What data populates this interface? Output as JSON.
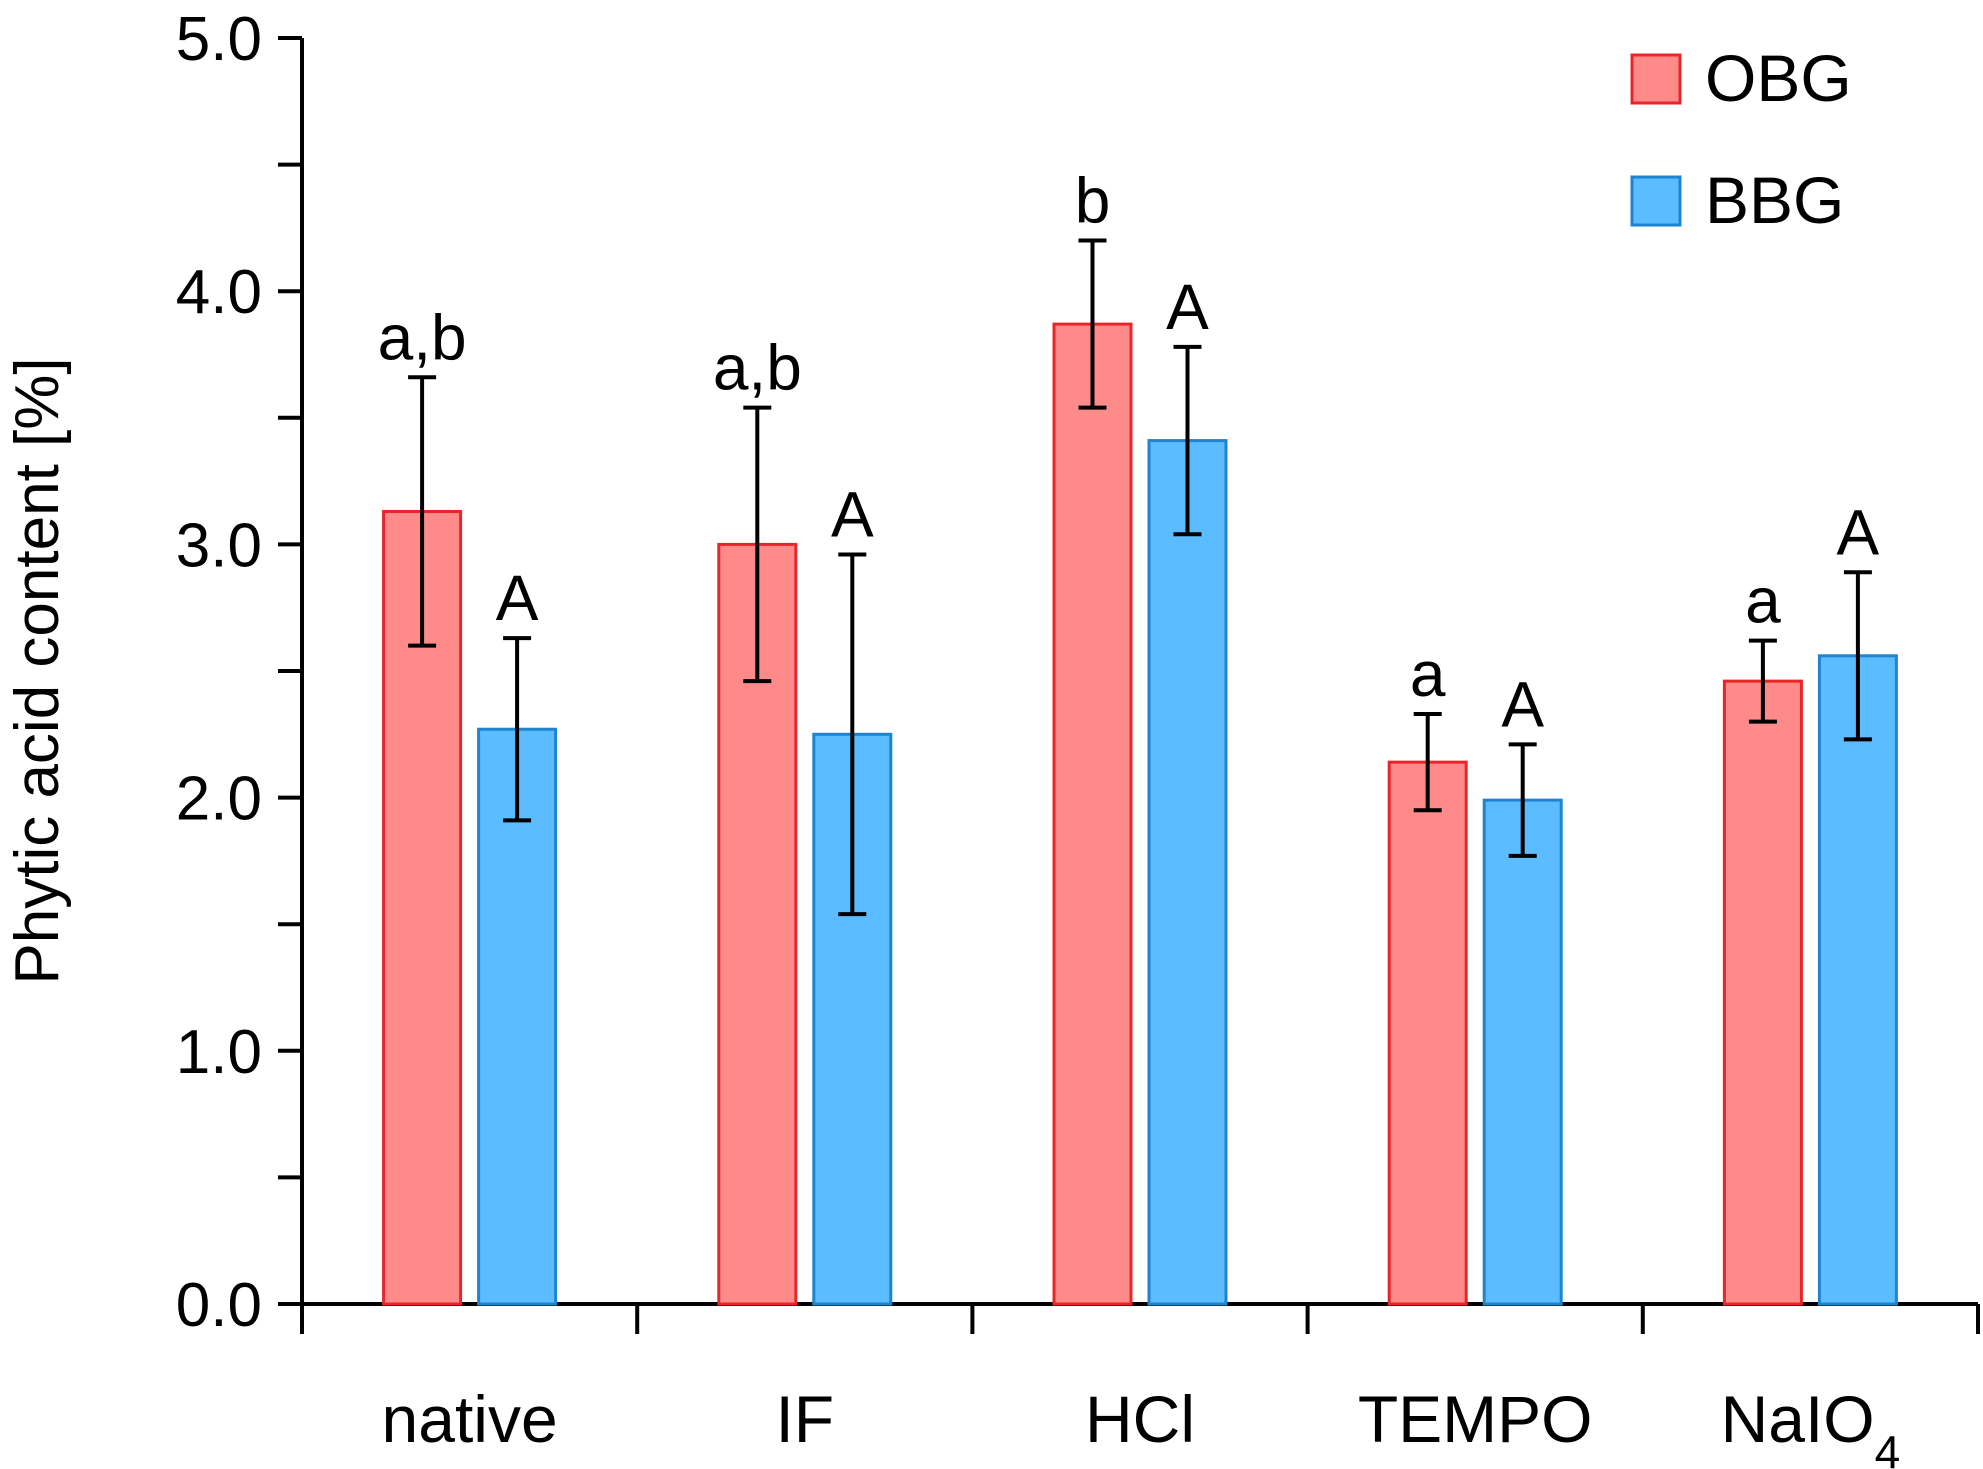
{
  "chart_data": {
    "type": "bar",
    "title": "",
    "xlabel": "",
    "ylabel": "Phytic acid content [%]",
    "ylim": [
      0,
      5
    ],
    "yticks": [
      "0.0",
      "1.0",
      "2.0",
      "3.0",
      "4.0",
      "5.0"
    ],
    "grid": false,
    "legend_position": "top-right",
    "categories": [
      {
        "label": "native",
        "sub": ""
      },
      {
        "label": "IF",
        "sub": ""
      },
      {
        "label": "HCl",
        "sub": ""
      },
      {
        "label": "TEMPO",
        "sub": ""
      },
      {
        "label": "NaIO",
        "sub": "4"
      }
    ],
    "series": [
      {
        "name": "OBG",
        "fill": "#ff8a8a",
        "stroke": "#e8262a",
        "values": [
          3.13,
          3.0,
          3.87,
          2.14,
          2.46
        ],
        "errors": [
          0.53,
          0.54,
          0.33,
          0.19,
          0.16
        ],
        "letters": [
          "a,b",
          "a,b",
          "b",
          "a",
          "a"
        ]
      },
      {
        "name": "BBG",
        "fill": "#5bbcff",
        "stroke": "#1e84d0",
        "values": [
          2.27,
          2.25,
          3.41,
          1.99,
          2.56
        ],
        "errors": [
          0.36,
          0.71,
          0.37,
          0.22,
          0.33
        ],
        "letters": [
          "A",
          "A",
          "A",
          "A",
          "A"
        ]
      }
    ]
  }
}
